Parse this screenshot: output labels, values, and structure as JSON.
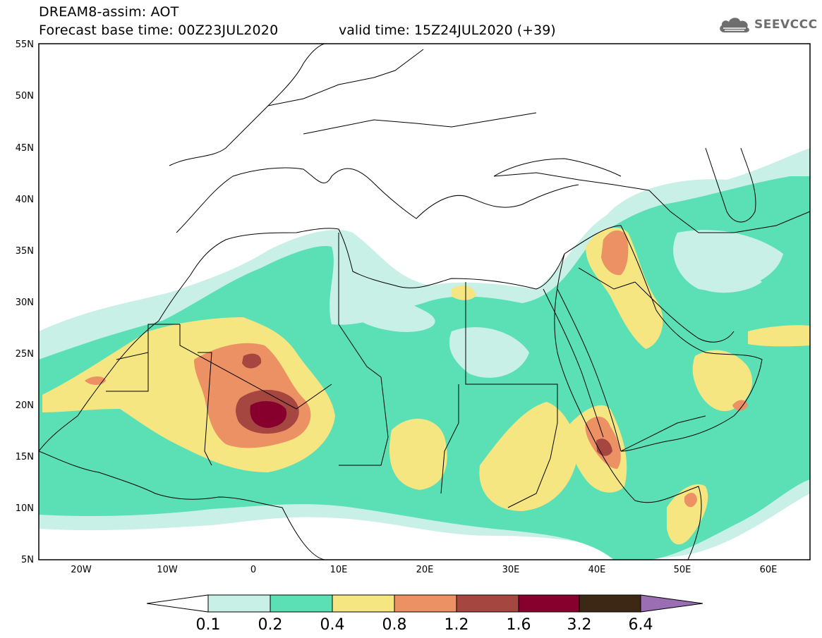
{
  "header": {
    "title": "DREAM8-assim: AOT",
    "base_time": "Forecast base time: 00Z23JUL2020",
    "valid_time": "valid time: 15Z24JUL2020 (+39)"
  },
  "logo": {
    "text": "SEEVCCC",
    "icon": "cloud-icon"
  },
  "map": {
    "lat_labels": [
      "55N",
      "50N",
      "45N",
      "40N",
      "35N",
      "30N",
      "25N",
      "20N",
      "15N",
      "10N",
      "5N"
    ],
    "lon_labels": [
      "20W",
      "10W",
      "0",
      "10E",
      "20E",
      "30E",
      "40E",
      "50E",
      "60E"
    ],
    "colors": {
      "c01": "#c8f0e6",
      "c02": "#5ae0b4",
      "c04": "#f5e682",
      "c08": "#eb9164",
      "c12": "#a54641",
      "c16": "#87002d",
      "c32": "#3c2814",
      "c64": "#9b6eb4",
      "border": "#000000"
    }
  },
  "colorbar": {
    "levels": [
      "0.1",
      "0.2",
      "0.4",
      "0.8",
      "1.2",
      "1.6",
      "3.2",
      "6.4"
    ],
    "colors": [
      "#c8f0e6",
      "#5ae0b4",
      "#f5e682",
      "#eb9164",
      "#a54641",
      "#87002d",
      "#3c2814"
    ],
    "under_color": "#ffffff",
    "over_color": "#9b6eb4"
  }
}
